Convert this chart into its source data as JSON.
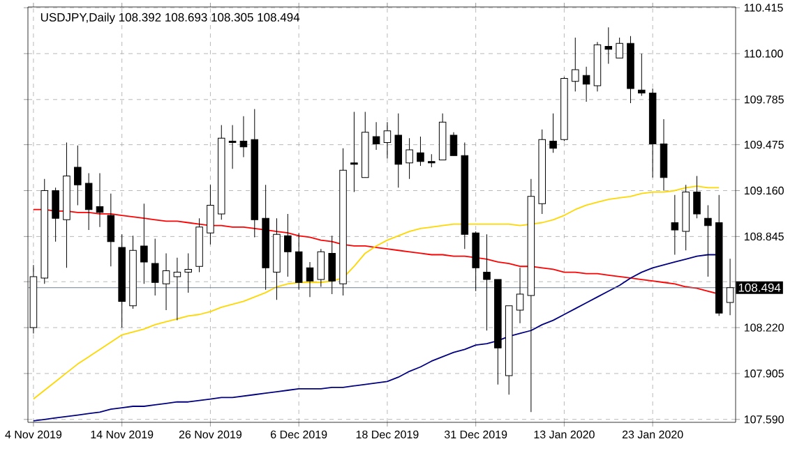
{
  "chart_data": {
    "type": "candlestick",
    "title": "USDJPY,Daily 108.392 108.693 108.305 108.494",
    "categories": [
      "4 Nov 2019",
      null,
      null,
      null,
      null,
      null,
      null,
      null,
      "14 Nov 2019",
      null,
      null,
      null,
      null,
      null,
      null,
      null,
      "26 Nov 2019",
      null,
      null,
      null,
      null,
      null,
      null,
      null,
      "6 Dec 2019",
      null,
      null,
      null,
      null,
      null,
      null,
      null,
      "18 Dec 2019",
      null,
      null,
      null,
      null,
      null,
      null,
      null,
      "31 Dec 2019",
      null,
      null,
      null,
      null,
      null,
      null,
      null,
      "13 Jan 2020",
      null,
      null,
      null,
      null,
      null,
      null,
      null,
      "23 Jan 2020",
      null,
      null,
      null,
      null,
      null,
      null,
      null
    ],
    "ohlc": [
      [
        108.22,
        108.65,
        108.18,
        108.57
      ],
      [
        108.56,
        109.24,
        108.52,
        109.16
      ],
      [
        109.16,
        109.18,
        108.81,
        108.97
      ],
      [
        108.96,
        109.49,
        108.63,
        109.26
      ],
      [
        109.32,
        109.47,
        109.06,
        109.2
      ],
      [
        109.21,
        109.28,
        108.89,
        109.03
      ],
      [
        109.05,
        109.28,
        108.91,
        109.01
      ],
      [
        108.99,
        109.14,
        108.64,
        108.81
      ],
      [
        108.77,
        108.86,
        108.22,
        108.4
      ],
      [
        108.37,
        108.85,
        108.35,
        108.75
      ],
      [
        108.78,
        109.07,
        108.52,
        108.67
      ],
      [
        108.66,
        108.83,
        108.44,
        108.53
      ],
      [
        108.52,
        108.73,
        108.34,
        108.61
      ],
      [
        108.57,
        108.7,
        108.27,
        108.6
      ],
      [
        108.6,
        108.73,
        108.46,
        108.62
      ],
      [
        108.64,
        108.97,
        108.6,
        108.91
      ],
      [
        108.87,
        109.2,
        108.79,
        109.06
      ],
      [
        109.0,
        109.61,
        108.96,
        109.52
      ],
      [
        109.5,
        109.61,
        109.31,
        109.49
      ],
      [
        109.5,
        109.67,
        109.39,
        109.46
      ],
      [
        109.51,
        109.72,
        108.84,
        108.96
      ],
      [
        108.97,
        109.2,
        108.48,
        108.63
      ],
      [
        108.6,
        108.97,
        108.41,
        108.86
      ],
      [
        108.85,
        109.0,
        108.57,
        108.74
      ],
      [
        108.74,
        108.87,
        108.48,
        108.53
      ],
      [
        108.63,
        108.67,
        108.43,
        108.54
      ],
      [
        108.55,
        108.76,
        108.5,
        108.74
      ],
      [
        108.73,
        108.85,
        108.45,
        108.54
      ],
      [
        108.52,
        109.45,
        108.44,
        109.3
      ],
      [
        109.35,
        109.7,
        109.15,
        109.34
      ],
      [
        109.25,
        109.7,
        109.25,
        109.56
      ],
      [
        109.53,
        109.63,
        109.44,
        109.48
      ],
      [
        109.49,
        109.63,
        109.38,
        109.57
      ],
      [
        109.54,
        109.69,
        109.18,
        109.34
      ],
      [
        109.35,
        109.52,
        109.24,
        109.44
      ],
      [
        109.42,
        109.53,
        109.33,
        109.36
      ],
      [
        109.36,
        109.41,
        109.32,
        109.35
      ],
      [
        109.37,
        109.69,
        109.37,
        109.63
      ],
      [
        109.54,
        109.56,
        109.4,
        109.4
      ],
      [
        109.4,
        109.49,
        108.76,
        108.86
      ],
      [
        108.87,
        108.88,
        108.47,
        108.63
      ],
      [
        108.6,
        108.86,
        108.2,
        108.55
      ],
      [
        108.55,
        108.55,
        107.83,
        108.08
      ],
      [
        107.89,
        108.37,
        107.76,
        108.37
      ],
      [
        108.34,
        108.63,
        108.25,
        108.45
      ],
      [
        108.44,
        109.24,
        107.64,
        109.12
      ],
      [
        109.07,
        109.58,
        109.0,
        109.51
      ],
      [
        109.5,
        109.69,
        109.42,
        109.45
      ],
      [
        109.51,
        109.94,
        109.5,
        109.93
      ],
      [
        109.91,
        110.21,
        109.84,
        109.99
      ],
      [
        109.95,
        110.01,
        109.77,
        109.89
      ],
      [
        109.88,
        110.18,
        109.84,
        110.16
      ],
      [
        110.15,
        110.28,
        110.03,
        110.13
      ],
      [
        110.07,
        110.21,
        110.07,
        110.17
      ],
      [
        110.17,
        110.22,
        109.76,
        109.86
      ],
      [
        109.85,
        110.1,
        109.81,
        109.83
      ],
      [
        109.83,
        109.86,
        109.25,
        109.48
      ],
      [
        109.48,
        109.65,
        109.16,
        109.25
      ],
      [
        108.94,
        109.13,
        108.72,
        108.89
      ],
      [
        108.88,
        109.2,
        108.75,
        109.15
      ],
      [
        109.15,
        109.26,
        108.97,
        109.0
      ],
      [
        108.97,
        109.06,
        108.57,
        108.92
      ],
      [
        108.94,
        109.13,
        108.3,
        108.32
      ],
      [
        108.392,
        108.693,
        108.305,
        108.494
      ]
    ],
    "series": [
      {
        "type": "line",
        "color": "#ff0000",
        "values": [
          109.03,
          109.03,
          109.02,
          109.02,
          109.01,
          109.01,
          109.0,
          109.0,
          108.99,
          108.98,
          108.97,
          108.96,
          108.95,
          108.95,
          108.94,
          108.93,
          108.92,
          108.92,
          108.91,
          108.91,
          108.9,
          108.89,
          108.88,
          108.87,
          108.85,
          108.84,
          108.82,
          108.81,
          108.79,
          108.78,
          108.78,
          108.77,
          108.76,
          108.75,
          108.74,
          108.73,
          108.72,
          108.72,
          108.71,
          108.71,
          108.7,
          108.69,
          108.67,
          108.66,
          108.64,
          108.64,
          108.63,
          108.62,
          108.6,
          108.6,
          108.59,
          108.59,
          108.58,
          108.57,
          108.56,
          108.55,
          108.54,
          108.53,
          108.52,
          108.5,
          108.49,
          108.47,
          108.45,
          null
        ]
      },
      {
        "type": "line",
        "color": "#ffd700",
        "values": [
          107.73,
          107.79,
          107.85,
          107.91,
          107.97,
          108.02,
          108.07,
          108.12,
          108.17,
          108.19,
          108.21,
          108.24,
          108.26,
          108.28,
          108.3,
          108.31,
          108.33,
          108.36,
          108.38,
          108.4,
          108.43,
          108.46,
          108.5,
          108.52,
          108.53,
          108.53,
          108.53,
          108.54,
          108.56,
          108.64,
          108.73,
          108.78,
          108.82,
          108.85,
          108.88,
          108.9,
          108.91,
          108.92,
          108.93,
          108.93,
          108.93,
          108.93,
          108.93,
          108.93,
          108.92,
          108.93,
          108.94,
          108.96,
          108.99,
          109.03,
          109.06,
          109.08,
          109.1,
          109.11,
          109.12,
          109.14,
          109.15,
          109.15,
          109.16,
          109.18,
          109.19,
          109.18,
          109.18,
          null
        ]
      },
      {
        "type": "line",
        "color": "#000080",
        "values": [
          107.58,
          107.59,
          107.6,
          107.61,
          107.62,
          107.63,
          107.64,
          107.66,
          107.67,
          107.68,
          107.68,
          107.69,
          107.7,
          107.71,
          107.71,
          107.72,
          107.73,
          107.74,
          107.74,
          107.75,
          107.76,
          107.77,
          107.78,
          107.79,
          107.8,
          107.8,
          107.8,
          107.81,
          107.81,
          107.82,
          107.83,
          107.84,
          107.85,
          107.88,
          107.92,
          107.95,
          107.99,
          108.02,
          108.05,
          108.07,
          108.1,
          108.11,
          108.13,
          108.16,
          108.18,
          108.2,
          108.24,
          108.27,
          108.31,
          108.35,
          108.39,
          108.43,
          108.47,
          108.51,
          108.56,
          108.6,
          108.63,
          108.65,
          108.67,
          108.69,
          108.71,
          108.72,
          108.72,
          null
        ]
      }
    ],
    "ylim": [
      107.57,
      110.42
    ],
    "yticks": [
      {
        "value": 107.59,
        "label": "107.590"
      },
      107.905,
      {
        "value": 108.22,
        "label": "108.220"
      },
      {
        "value": 108.535,
        "label": null
      },
      108.845,
      {
        "value": 109.16,
        "label": "109.160"
      },
      109.475,
      109.785,
      {
        "value": 110.1,
        "label": "110.100"
      },
      110.415
    ],
    "grid": true,
    "marker": "none",
    "line_style": "solid",
    "ref_lines": [
      {
        "axis": "y",
        "value": 108.494,
        "label": "108.494",
        "color": "#708090"
      }
    ]
  }
}
